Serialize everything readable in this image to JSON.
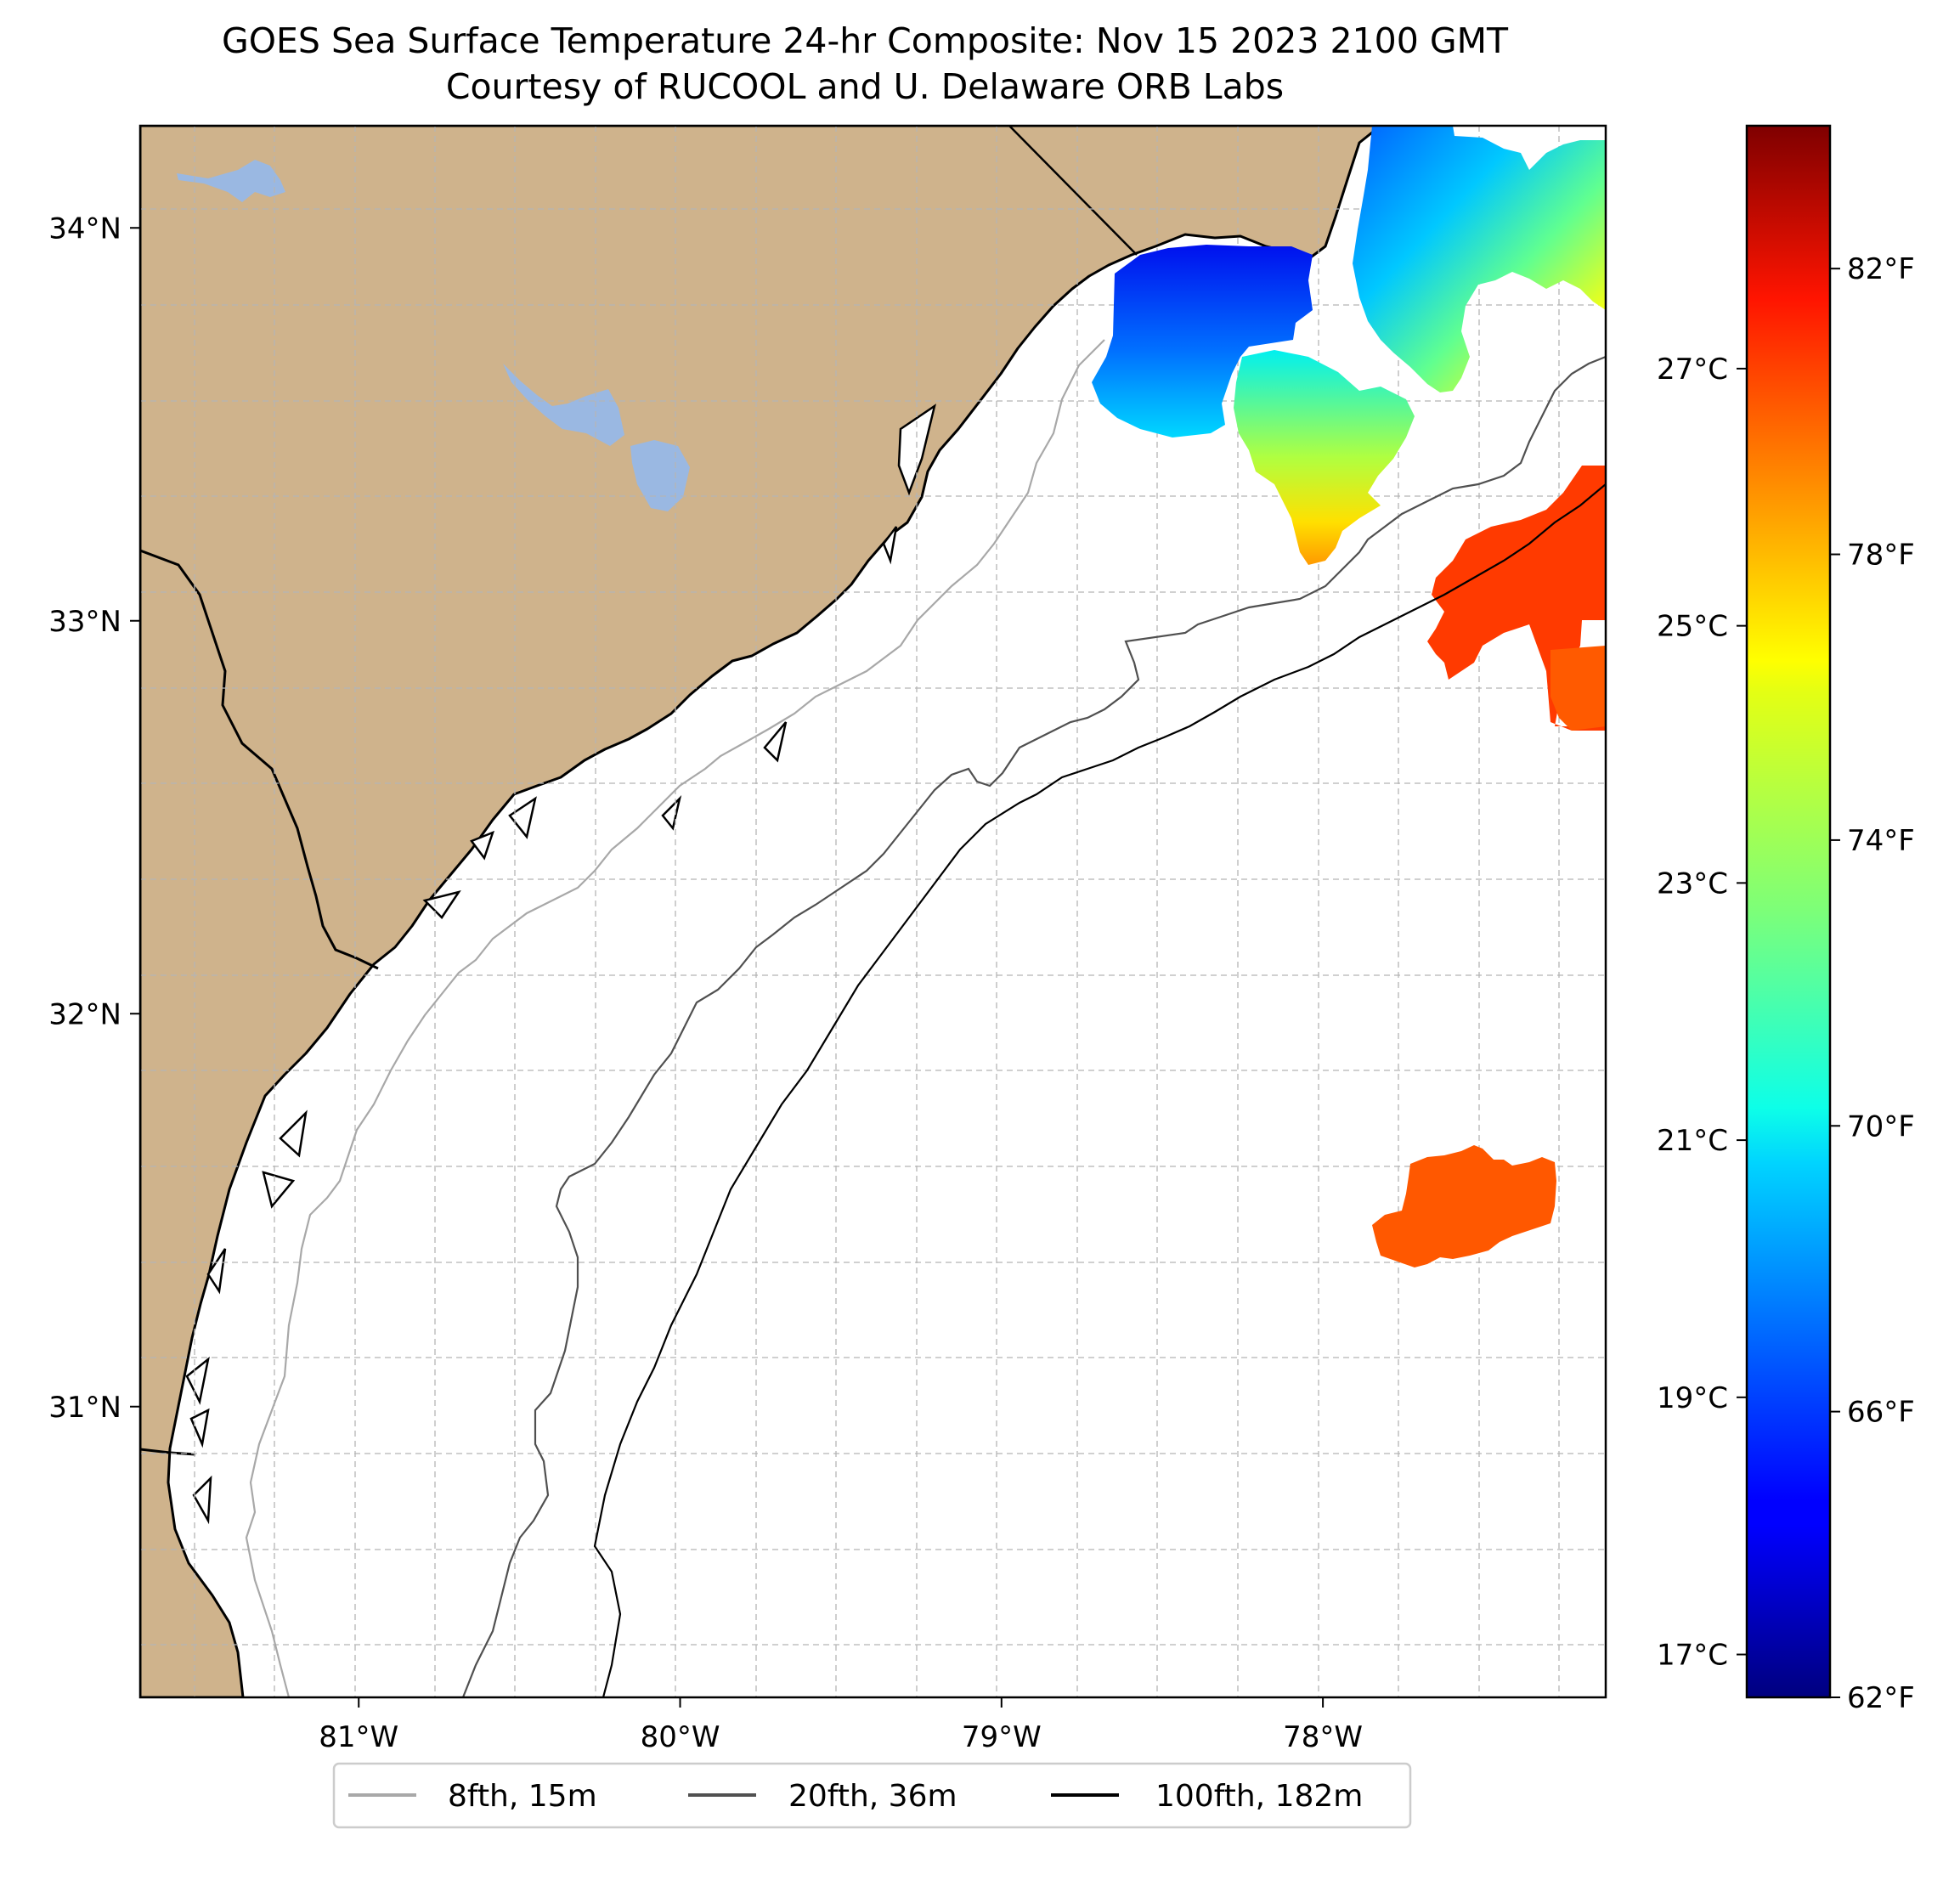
{
  "title": {
    "line1": "GOES Sea Surface Temperature 24-hr Composite: Nov 15 2023 2100 GMT",
    "line2": "Courtesy of RUCOOL and U. Delaware ORB Labs"
  },
  "map": {
    "lon_range": [
      -81.68,
      -77.12
    ],
    "lat_range": [
      30.26,
      34.26
    ],
    "lon_ticks": [
      {
        "value": -81,
        "label": "81°W"
      },
      {
        "value": -80,
        "label": "80°W"
      },
      {
        "value": -79,
        "label": "79°W"
      },
      {
        "value": -78,
        "label": "78°W"
      }
    ],
    "lat_ticks": [
      {
        "value": 34,
        "label": "34°N"
      },
      {
        "value": 33,
        "label": "33°N"
      },
      {
        "value": 32,
        "label": "32°N"
      },
      {
        "value": 31,
        "label": "31°N"
      }
    ],
    "land_color": "#cfb38c",
    "water_color": "#9ab8e2",
    "ocean_color": "#ffffff"
  },
  "colorbar": {
    "colormap": "jet",
    "range_f": [
      62,
      84
    ],
    "f_ticks": [
      {
        "value": 62,
        "label": "62°F"
      },
      {
        "value": 66,
        "label": "66°F"
      },
      {
        "value": 70,
        "label": "70°F"
      },
      {
        "value": 74,
        "label": "74°F"
      },
      {
        "value": 78,
        "label": "78°F"
      },
      {
        "value": 82,
        "label": "82°F"
      }
    ],
    "c_ticks": [
      {
        "value": 17,
        "label": "17°C"
      },
      {
        "value": 19,
        "label": "19°C"
      },
      {
        "value": 21,
        "label": "21°C"
      },
      {
        "value": 23,
        "label": "23°C"
      },
      {
        "value": 25,
        "label": "25°C"
      },
      {
        "value": 27,
        "label": "27°C"
      }
    ]
  },
  "legend": {
    "items": [
      {
        "label": "8fth, 15m",
        "color": "#a8a8a8"
      },
      {
        "label": "20fth, 36m",
        "color": "#505050"
      },
      {
        "label": "100fth, 182m",
        "color": "#000000"
      }
    ]
  },
  "sst_patches": [
    {
      "name": "cold-patch-northwest",
      "temp_f": 65.5
    },
    {
      "name": "cool-patch-central",
      "temp_f": 73.5
    },
    {
      "name": "cool-patch-northeast",
      "temp_f": 72
    },
    {
      "name": "gulf-stream-patch-east",
      "temp_f": 80.5
    },
    {
      "name": "warm-patch-south",
      "temp_f": 80
    }
  ]
}
